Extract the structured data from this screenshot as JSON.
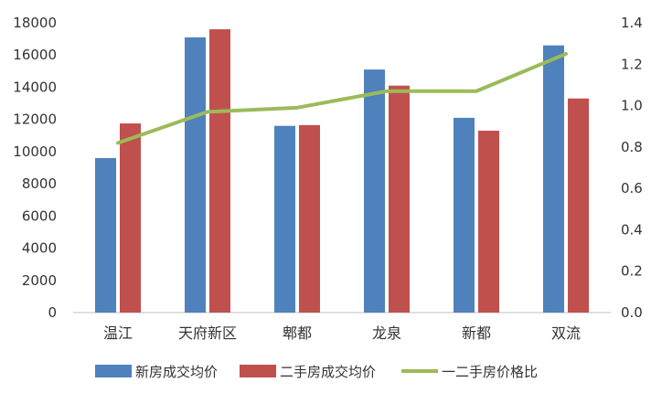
{
  "chart_data": {
    "type": "bar",
    "categories": [
      "温江",
      "天府新区",
      "郫都",
      "龙泉",
      "新都",
      "双流"
    ],
    "series": [
      {
        "name": "新房成交均价",
        "kind": "bar",
        "axis": "left",
        "color": "#4F81BD",
        "values": [
          9600,
          17100,
          11600,
          15100,
          12100,
          16600
        ]
      },
      {
        "name": "二手房成交均价",
        "kind": "bar",
        "axis": "left",
        "color": "#C0504D",
        "values": [
          11750,
          17600,
          11650,
          14100,
          11300,
          13300
        ]
      },
      {
        "name": "一二手房价格比",
        "kind": "line",
        "axis": "right",
        "color": "#9BBB59",
        "values": [
          0.82,
          0.97,
          0.99,
          1.07,
          1.07,
          1.25
        ]
      }
    ],
    "y_left": {
      "min": 0,
      "max": 18000,
      "ticks": [
        "0",
        "2000",
        "4000",
        "6000",
        "8000",
        "10000",
        "12000",
        "14000",
        "16000",
        "18000"
      ]
    },
    "y_right": {
      "min": 0,
      "max": 1.4,
      "ticks": [
        "0.0",
        "0.2",
        "0.4",
        "0.6",
        "0.8",
        "1.0",
        "1.2",
        "1.4"
      ]
    },
    "grid": false,
    "legend_position": "bottom"
  }
}
